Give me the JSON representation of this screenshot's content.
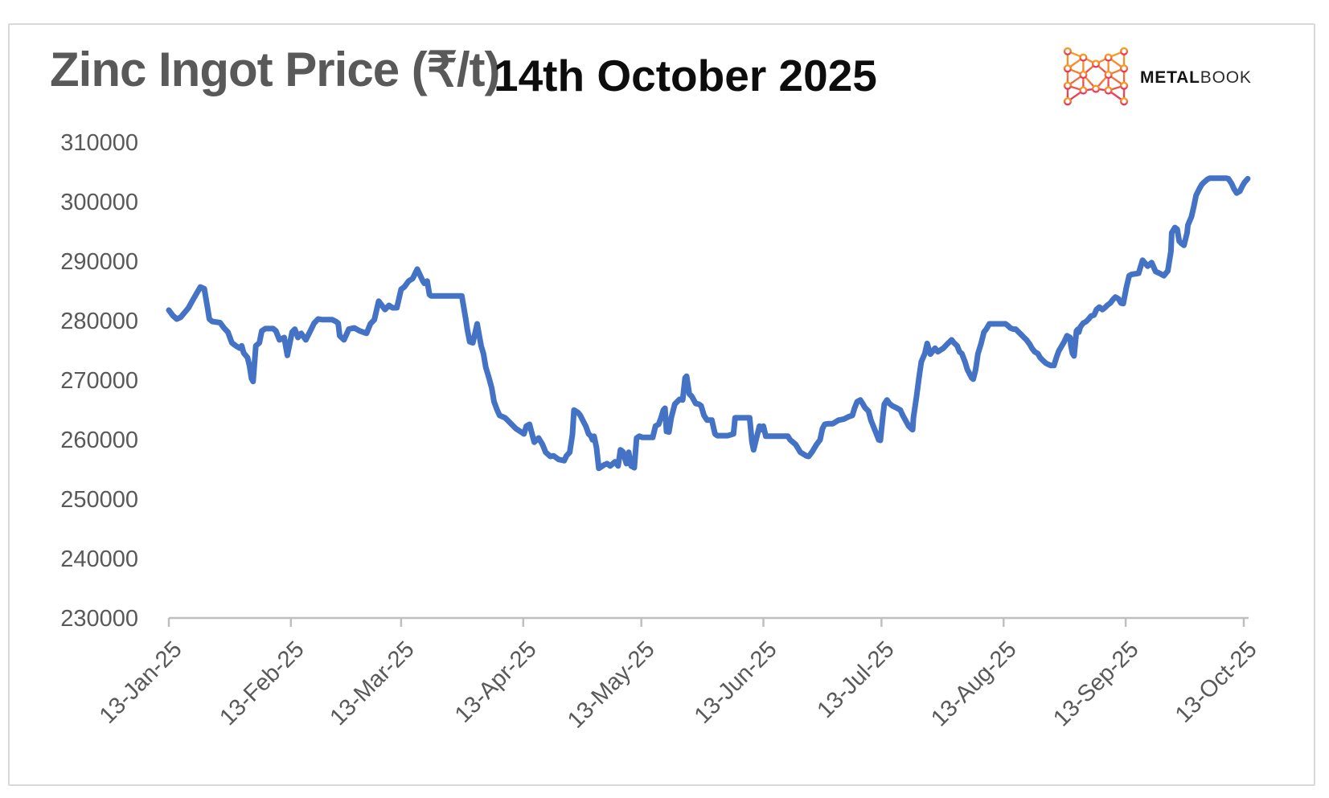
{
  "page": {
    "border_color": "#d9d9d9",
    "background": "#ffffff"
  },
  "header": {
    "title": "Zinc Ingot Price (₹/t)",
    "date_title": "14th October 2025",
    "logo": {
      "brand_bold": "METAL",
      "brand_light": "BOOK",
      "icon": "metalbook-network-m-icon",
      "icon_gradient_top": "#F9A11B",
      "icon_gradient_bottom": "#EC2D66"
    }
  },
  "chart_data": {
    "type": "line",
    "title": "Zinc Ingot Price (₹/t)",
    "as_of_date": "14th October 2025",
    "series_name": "Zinc Ingot Price",
    "series_color": "#4472C4",
    "line_width": 7,
    "grid": false,
    "legend": false,
    "axis_color": "#bfbfbf",
    "tick_label_color": "#595959",
    "x_axis": {
      "unit": "date",
      "start_label": "13-Jan-25",
      "end_label": "13-Oct-25",
      "total_days": 274,
      "tick_day_offsets": [
        0,
        31,
        59,
        90,
        120,
        151,
        181,
        212,
        243,
        273
      ],
      "tick_labels": [
        "13-Jan-25",
        "13-Feb-25",
        "13-Mar-25",
        "13-Apr-25",
        "13-May-25",
        "13-Jun-25",
        "13-Jul-25",
        "13-Aug-25",
        "13-Sep-25",
        "13-Oct-25"
      ]
    },
    "y_axis": {
      "unit": "₹/t",
      "min": 230000,
      "max": 310000,
      "tick_interval": 10000,
      "tick_values": [
        230000,
        240000,
        250000,
        260000,
        270000,
        280000,
        290000,
        300000,
        310000
      ]
    },
    "points": [
      [
        0,
        281900
      ],
      [
        1,
        281000
      ],
      [
        2,
        280400
      ],
      [
        3,
        280700
      ],
      [
        5,
        282300
      ],
      [
        6,
        283500
      ],
      [
        8,
        285800
      ],
      [
        9,
        285500
      ],
      [
        9.8,
        282400
      ],
      [
        10.3,
        280400
      ],
      [
        11,
        280000
      ],
      [
        13,
        279800
      ],
      [
        14,
        278900
      ],
      [
        15,
        278200
      ],
      [
        16,
        276400
      ],
      [
        17,
        275900
      ],
      [
        18,
        275500
      ],
      [
        18.5,
        275900
      ],
      [
        19,
        274700
      ],
      [
        20,
        273900
      ],
      [
        20.5,
        272500
      ],
      [
        21,
        270400
      ],
      [
        21.4,
        269900
      ],
      [
        22.1,
        275900
      ],
      [
        23,
        276400
      ],
      [
        23.6,
        278400
      ],
      [
        24.5,
        278800
      ],
      [
        26.5,
        278800
      ],
      [
        27.2,
        278400
      ],
      [
        28.1,
        276900
      ],
      [
        29.3,
        277300
      ],
      [
        30.1,
        274300
      ],
      [
        31.3,
        278200
      ],
      [
        32,
        278700
      ],
      [
        32.8,
        277300
      ],
      [
        33.6,
        278000
      ],
      [
        34.8,
        276900
      ],
      [
        35.4,
        277700
      ],
      [
        36.9,
        279700
      ],
      [
        37.9,
        280400
      ],
      [
        39,
        280300
      ],
      [
        41.5,
        280300
      ],
      [
        42.4,
        280000
      ],
      [
        43,
        279700
      ],
      [
        43.4,
        277600
      ],
      [
        44.5,
        276900
      ],
      [
        45.7,
        278700
      ],
      [
        47.1,
        278900
      ],
      [
        48.5,
        278400
      ],
      [
        50.2,
        278000
      ],
      [
        51.2,
        279600
      ],
      [
        52.2,
        280300
      ],
      [
        53.3,
        283400
      ],
      [
        54.9,
        282000
      ],
      [
        55.9,
        282700
      ],
      [
        56.8,
        282300
      ],
      [
        57.9,
        282300
      ],
      [
        59,
        285400
      ],
      [
        59.8,
        285800
      ],
      [
        60.9,
        286800
      ],
      [
        61.9,
        287200
      ],
      [
        63.1,
        288800
      ],
      [
        64.5,
        286800
      ],
      [
        64.9,
        286400
      ],
      [
        65.6,
        286800
      ],
      [
        66.2,
        284500
      ],
      [
        66.6,
        284300
      ],
      [
        74.4,
        284300
      ],
      [
        75.4,
        280400
      ],
      [
        75.8,
        278700
      ],
      [
        76.4,
        276600
      ],
      [
        77.2,
        276400
      ],
      [
        78.3,
        279600
      ],
      [
        79.3,
        275900
      ],
      [
        79.9,
        274600
      ],
      [
        80.5,
        272300
      ],
      [
        81.3,
        270500
      ],
      [
        82,
        268800
      ],
      [
        82.6,
        266500
      ],
      [
        83.4,
        265100
      ],
      [
        84,
        264200
      ],
      [
        85.4,
        263800
      ],
      [
        86,
        263400
      ],
      [
        87.5,
        262400
      ],
      [
        88.1,
        262000
      ],
      [
        90.2,
        261100
      ],
      [
        90.8,
        262400
      ],
      [
        91.6,
        262700
      ],
      [
        92.8,
        259700
      ],
      [
        93.9,
        260400
      ],
      [
        94.9,
        259300
      ],
      [
        95.7,
        258000
      ],
      [
        96.9,
        257300
      ],
      [
        97.7,
        257400
      ],
      [
        99,
        256800
      ],
      [
        100.4,
        256600
      ],
      [
        101,
        257400
      ],
      [
        101.8,
        258000
      ],
      [
        102.5,
        261000
      ],
      [
        102.9,
        265100
      ],
      [
        103.9,
        264700
      ],
      [
        104.5,
        264200
      ],
      [
        105.1,
        263400
      ],
      [
        105.9,
        262400
      ],
      [
        106.6,
        261100
      ],
      [
        107.2,
        260700
      ],
      [
        107.6,
        260100
      ],
      [
        108,
        260700
      ],
      [
        108.6,
        258800
      ],
      [
        109.2,
        255300
      ],
      [
        110.6,
        255900
      ],
      [
        111.3,
        256100
      ],
      [
        112.1,
        255700
      ],
      [
        113.3,
        256400
      ],
      [
        114.1,
        255700
      ],
      [
        114.7,
        258400
      ],
      [
        115.3,
        258100
      ],
      [
        116.2,
        256100
      ],
      [
        116.8,
        258000
      ],
      [
        117.4,
        255700
      ],
      [
        118.2,
        255400
      ],
      [
        118.8,
        260400
      ],
      [
        119.5,
        260700
      ],
      [
        120.3,
        260500
      ],
      [
        122.9,
        260500
      ],
      [
        123.6,
        262400
      ],
      [
        124.4,
        262700
      ],
      [
        125,
        263800
      ],
      [
        125.6,
        265100
      ],
      [
        126,
        265400
      ],
      [
        126.4,
        261500
      ],
      [
        127,
        261400
      ],
      [
        127.6,
        263800
      ],
      [
        128.5,
        266100
      ],
      [
        129.1,
        266500
      ],
      [
        129.7,
        266900
      ],
      [
        130.5,
        266800
      ],
      [
        131.1,
        270500
      ],
      [
        131.5,
        270800
      ],
      [
        132.2,
        267800
      ],
      [
        132.8,
        267400
      ],
      [
        133.8,
        266200
      ],
      [
        134.6,
        266100
      ],
      [
        135.2,
        265800
      ],
      [
        135.9,
        264200
      ],
      [
        136.7,
        263400
      ],
      [
        137.9,
        263400
      ],
      [
        138.7,
        261100
      ],
      [
        139.3,
        260800
      ],
      [
        142,
        260800
      ],
      [
        143.4,
        261100
      ],
      [
        143.8,
        263800
      ],
      [
        147.5,
        263800
      ],
      [
        148.1,
        259700
      ],
      [
        148.5,
        258400
      ],
      [
        150,
        262400
      ],
      [
        150.6,
        261800
      ],
      [
        151,
        262400
      ],
      [
        151.6,
        260700
      ],
      [
        152.2,
        260700
      ],
      [
        157.2,
        260700
      ],
      [
        157.8,
        260100
      ],
      [
        159.2,
        259300
      ],
      [
        160.4,
        258000
      ],
      [
        161.9,
        257400
      ],
      [
        162.5,
        257300
      ],
      [
        163.3,
        258000
      ],
      [
        164.5,
        259300
      ],
      [
        165.4,
        260100
      ],
      [
        166,
        262000
      ],
      [
        166.6,
        262700
      ],
      [
        167.4,
        262800
      ],
      [
        168.6,
        262800
      ],
      [
        170.1,
        263400
      ],
      [
        171.5,
        263600
      ],
      [
        172.7,
        264000
      ],
      [
        173.6,
        264200
      ],
      [
        174.2,
        265500
      ],
      [
        174.8,
        266500
      ],
      [
        175.6,
        266800
      ],
      [
        176.2,
        266200
      ],
      [
        176.8,
        265500
      ],
      [
        177.7,
        264900
      ],
      [
        178.3,
        263400
      ],
      [
        178.9,
        262400
      ],
      [
        179.7,
        261100
      ],
      [
        180.3,
        260100
      ],
      [
        180.7,
        260000
      ],
      [
        181.3,
        263800
      ],
      [
        181.7,
        266100
      ],
      [
        182.4,
        266800
      ],
      [
        183,
        266200
      ],
      [
        183.8,
        265800
      ],
      [
        185,
        265400
      ],
      [
        185.8,
        265100
      ],
      [
        186.4,
        264200
      ],
      [
        187.9,
        262400
      ],
      [
        188.5,
        262000
      ],
      [
        188.9,
        261800
      ],
      [
        189.1,
        263800
      ],
      [
        189.9,
        267400
      ],
      [
        190.5,
        270500
      ],
      [
        191.1,
        273200
      ],
      [
        192,
        274600
      ],
      [
        192.6,
        276300
      ],
      [
        193.4,
        274500
      ],
      [
        194.6,
        275500
      ],
      [
        195.3,
        274900
      ],
      [
        196.7,
        275500
      ],
      [
        197.7,
        276200
      ],
      [
        198.8,
        276900
      ],
      [
        199.4,
        276400
      ],
      [
        200.2,
        275900
      ],
      [
        200.8,
        274900
      ],
      [
        201.4,
        274600
      ],
      [
        202.2,
        273200
      ],
      [
        202.8,
        271900
      ],
      [
        203.9,
        270500
      ],
      [
        204.3,
        270300
      ],
      [
        204.9,
        271900
      ],
      [
        205.5,
        274600
      ],
      [
        206.3,
        276300
      ],
      [
        207,
        278200
      ],
      [
        207.6,
        278700
      ],
      [
        208.4,
        279600
      ],
      [
        211.7,
        279600
      ],
      [
        212.5,
        279600
      ],
      [
        213.1,
        279300
      ],
      [
        213.7,
        278900
      ],
      [
        214.5,
        278700
      ],
      [
        215.1,
        278700
      ],
      [
        216.6,
        277700
      ],
      [
        217.2,
        277300
      ],
      [
        217.8,
        276900
      ],
      [
        218.6,
        276200
      ],
      [
        219.2,
        275500
      ],
      [
        219.9,
        274900
      ],
      [
        220.7,
        274600
      ],
      [
        221.3,
        273900
      ],
      [
        221.9,
        273500
      ],
      [
        222.7,
        273000
      ],
      [
        223.3,
        272800
      ],
      [
        224,
        272600
      ],
      [
        224.8,
        272600
      ],
      [
        225.4,
        273900
      ],
      [
        226,
        275000
      ],
      [
        226.8,
        275900
      ],
      [
        227.4,
        276600
      ],
      [
        228.1,
        277600
      ],
      [
        228.9,
        277300
      ],
      [
        229.1,
        275900
      ],
      [
        229.5,
        274600
      ],
      [
        229.9,
        274200
      ],
      [
        230.5,
        278400
      ],
      [
        230.9,
        278700
      ],
      [
        231.1,
        278200
      ],
      [
        231.5,
        279100
      ],
      [
        232.2,
        279700
      ],
      [
        233,
        280000
      ],
      [
        233.6,
        280400
      ],
      [
        234.2,
        280900
      ],
      [
        235,
        281100
      ],
      [
        235.6,
        282000
      ],
      [
        236.3,
        282400
      ],
      [
        237.1,
        282000
      ],
      [
        237.7,
        282300
      ],
      [
        238.3,
        282700
      ],
      [
        239.1,
        283100
      ],
      [
        239.8,
        283700
      ],
      [
        240.4,
        284100
      ],
      [
        241.2,
        283800
      ],
      [
        241.8,
        283100
      ],
      [
        242.4,
        283000
      ],
      [
        243.2,
        285800
      ],
      [
        243.9,
        287700
      ],
      [
        244.5,
        287900
      ],
      [
        246.3,
        288100
      ],
      [
        247.3,
        290300
      ],
      [
        248.6,
        289300
      ],
      [
        249.6,
        289900
      ],
      [
        250.6,
        288400
      ],
      [
        251.6,
        288100
      ],
      [
        252.7,
        287700
      ],
      [
        253.7,
        288500
      ],
      [
        254.5,
        291800
      ],
      [
        254.7,
        294900
      ],
      [
        255.5,
        295800
      ],
      [
        256.1,
        295500
      ],
      [
        256.6,
        293500
      ],
      [
        257.2,
        293100
      ],
      [
        257.8,
        292800
      ],
      [
        258.6,
        294900
      ],
      [
        258.8,
        296200
      ],
      [
        259.7,
        297600
      ],
      [
        260.3,
        299300
      ],
      [
        260.9,
        301200
      ],
      [
        261.7,
        302300
      ],
      [
        262.3,
        303000
      ],
      [
        262.9,
        303400
      ],
      [
        263.8,
        303900
      ],
      [
        264.4,
        304100
      ],
      [
        268.5,
        304100
      ],
      [
        269.1,
        304000
      ],
      [
        269.9,
        303200
      ],
      [
        270.5,
        302300
      ],
      [
        271.2,
        301600
      ],
      [
        272,
        301900
      ],
      [
        272.6,
        302700
      ],
      [
        273.2,
        303400
      ],
      [
        274,
        304000
      ]
    ]
  }
}
